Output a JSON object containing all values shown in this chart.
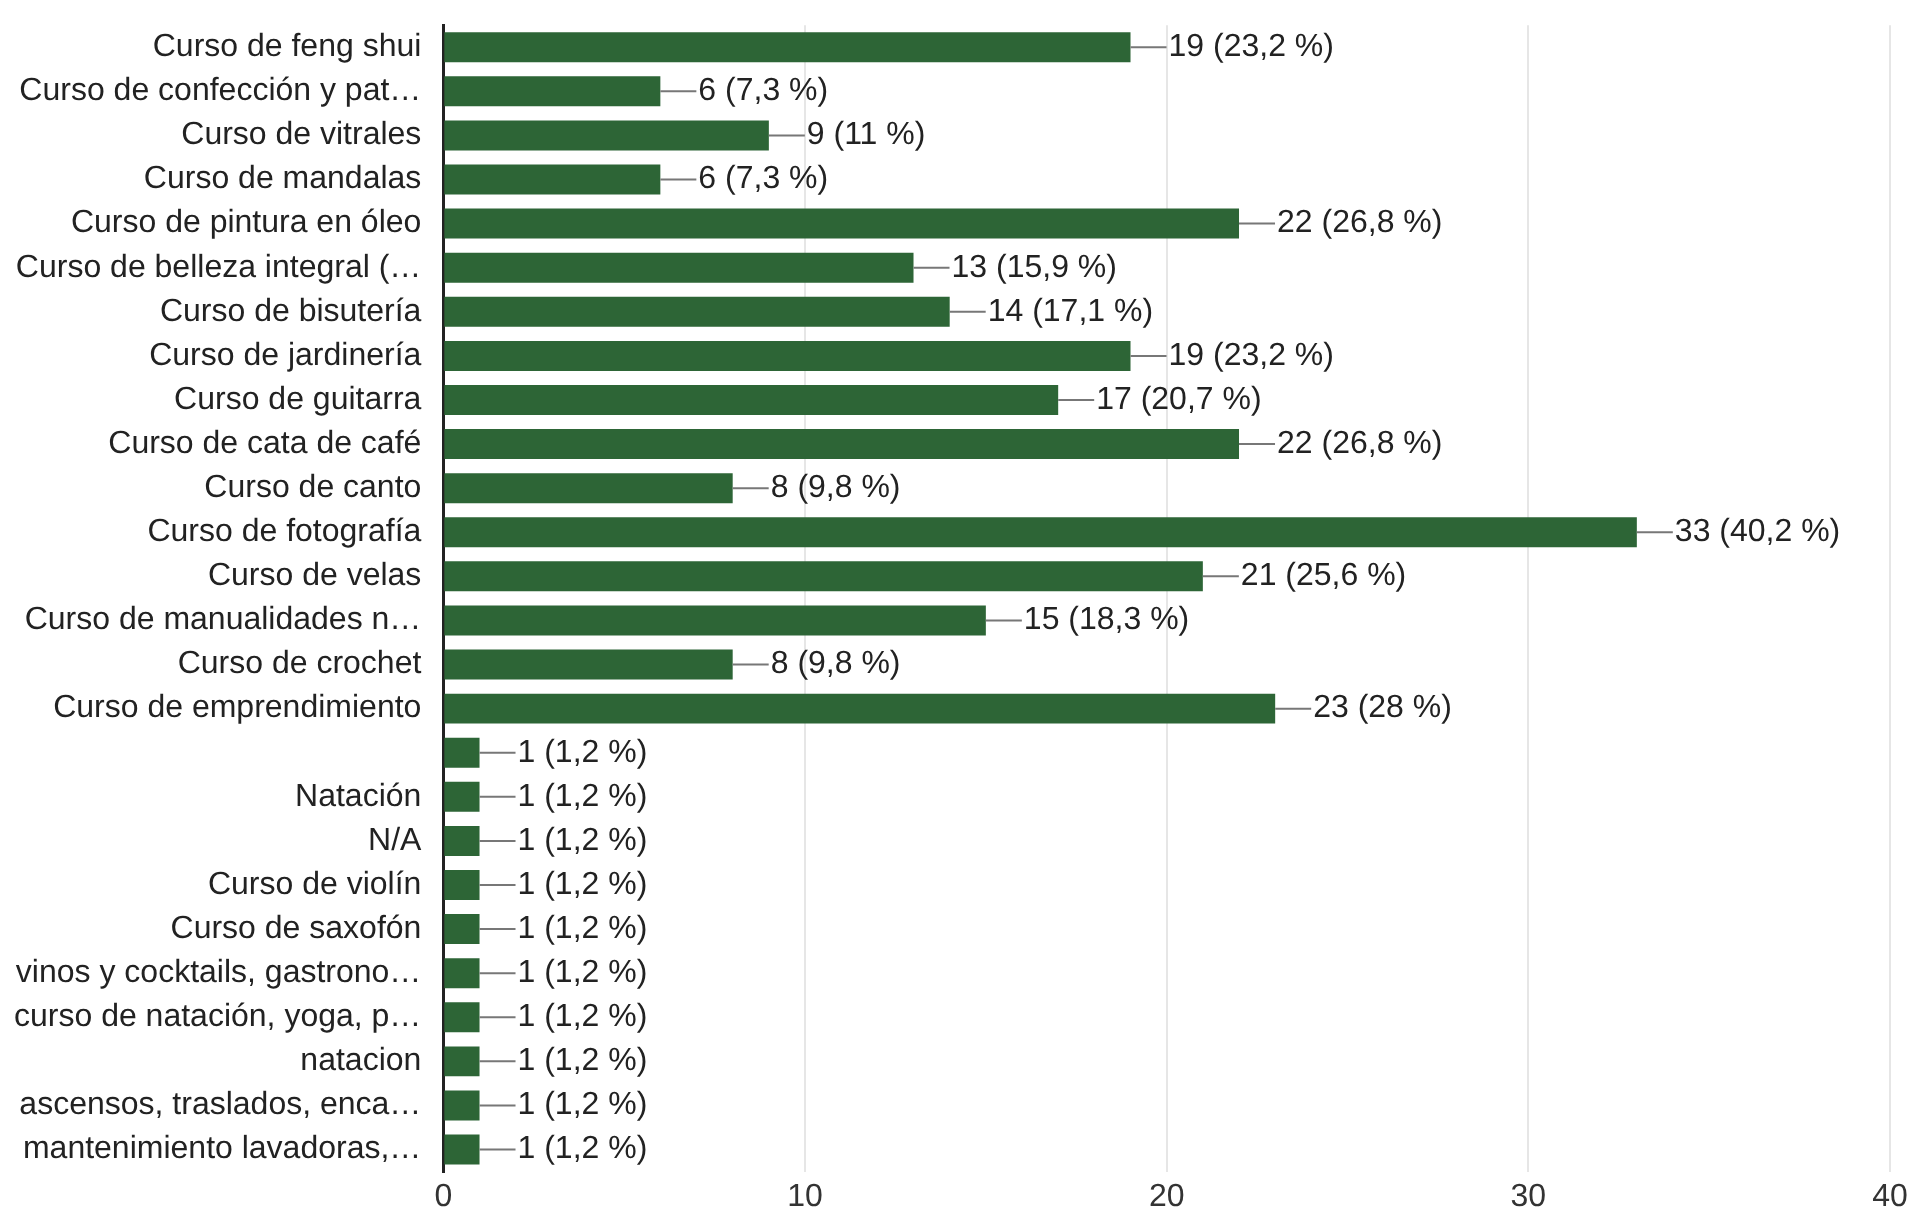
{
  "chart_data": {
    "type": "bar",
    "orientation": "horizontal",
    "grid": "x",
    "color": "#2d6536",
    "categories": [
      "Curso de feng shui",
      "Curso de confección y pat…",
      "Curso de vitrales",
      "Curso de mandalas",
      "Curso de pintura en óleo",
      "Curso de belleza integral (…",
      "Curso de bisutería",
      "Curso de jardinería",
      "Curso de guitarra",
      "Curso de cata de café",
      "Curso de canto",
      "Curso de fotografía",
      "Curso de velas",
      "Curso de manualidades n…",
      "Curso de crochet",
      "Curso de emprendimiento",
      null,
      "Natación",
      "N/A",
      "Curso de violín",
      "Curso de saxofón",
      "vinos y cocktails, gastrono…",
      "curso de natación, yoga, p…",
      "natacion",
      "ascensos, traslados, enca…",
      "mantenimiento lavadoras,…"
    ],
    "values": [
      19,
      6,
      9,
      6,
      22,
      13,
      14,
      19,
      17,
      22,
      8,
      33,
      21,
      15,
      8,
      23,
      1,
      1,
      1,
      1,
      1,
      1,
      1,
      1,
      1,
      1
    ],
    "value_labels": [
      "19 (23,2 %)",
      "6 (7,3 %)",
      "9 (11 %)",
      "6 (7,3 %)",
      "22 (26,8 %)",
      "13 (15,9 %)",
      "14 (17,1 %)",
      "19 (23,2 %)",
      "17 (20,7 %)",
      "22 (26,8 %)",
      "8 (9,8 %)",
      "33 (40,2 %)",
      "21 (25,6 %)",
      "15 (18,3 %)",
      "8 (9,8 %)",
      "23 (28 %)",
      "1 (1,2 %)",
      "1 (1,2 %)",
      "1 (1,2 %)",
      "1 (1,2 %)",
      "1 (1,2 %)",
      "1 (1,2 %)",
      "1 (1,2 %)",
      "1 (1,2 %)",
      "1 (1,2 %)",
      "1 (1,2 %)"
    ],
    "xlim": [
      0,
      40
    ],
    "xticks": [
      0,
      10,
      20,
      30,
      40
    ]
  }
}
